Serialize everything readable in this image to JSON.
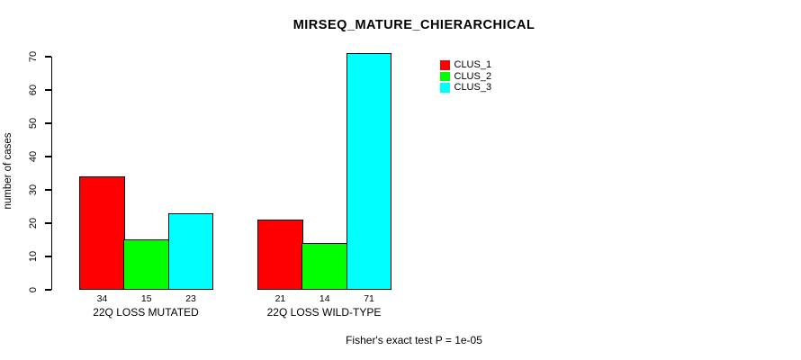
{
  "chart_data": {
    "type": "bar",
    "title": "MIRSEQ_MATURE_CHIERARCHICAL",
    "xlabel": "",
    "ylabel": "number of cases",
    "categories": [
      "22Q LOSS MUTATED",
      "22Q LOSS WILD-TYPE"
    ],
    "series": [
      {
        "name": "CLUS_1",
        "color": "#FF0000",
        "values": [
          34,
          21
        ]
      },
      {
        "name": "CLUS_2",
        "color": "#00FF00",
        "values": [
          15,
          14
        ]
      },
      {
        "name": "CLUS_3",
        "color": "#00FFFF",
        "values": [
          23,
          71
        ]
      }
    ],
    "bar_value_labels": [
      [
        34,
        15,
        23
      ],
      [
        21,
        14,
        71
      ]
    ],
    "ylim": [
      0,
      70
    ],
    "yticks": [
      0,
      10,
      20,
      30,
      40,
      50,
      60,
      70
    ],
    "grid": false,
    "legend_position": "top-right",
    "annotation": "Fisher's exact test P = 1e-05"
  }
}
